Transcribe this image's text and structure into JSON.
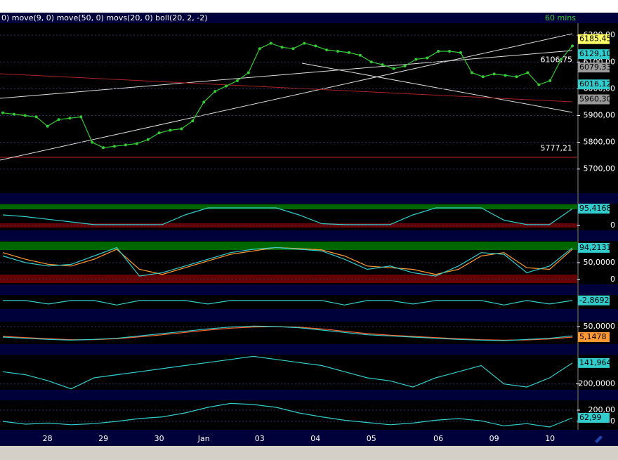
{
  "header": {
    "indicators": "0) move(9, 0) move(50, 0) movs(20, 0) boll(20, 2, -2)",
    "timeframe": "60 mins"
  },
  "chart_data": [
    {
      "type": "line",
      "color": "#33cc33",
      "categories": [
        null,
        null,
        null,
        null,
        "28",
        null,
        null,
        null,
        null,
        "29",
        null,
        null,
        null,
        null,
        "30",
        null,
        null,
        null,
        "Jan",
        null,
        null,
        null,
        null,
        "03",
        null,
        null,
        null,
        null,
        "04",
        null,
        null,
        null,
        null,
        "05",
        null,
        null,
        null,
        null,
        null,
        "06",
        null,
        null,
        null,
        null,
        "09",
        null,
        null,
        null,
        null,
        "10",
        null,
        null
      ],
      "values": [
        5910,
        5905,
        5900,
        5895,
        5860,
        5885,
        5890,
        5895,
        5800,
        5780,
        5785,
        5790,
        5795,
        5810,
        5835,
        5845,
        5850,
        5880,
        5950,
        5990,
        6010,
        6030,
        6060,
        6150,
        6170,
        6155,
        6150,
        6170,
        6160,
        6145,
        6140,
        6135,
        6125,
        6100,
        6090,
        6075,
        6085,
        6110,
        6115,
        6140,
        6140,
        6135,
        6060,
        6045,
        6055,
        6050,
        6045,
        6060,
        6015,
        6030,
        6110,
        6160
      ],
      "ylim": [
        5610,
        6245
      ],
      "yticks": [
        {
          "value": 6200,
          "label": "6200,00"
        },
        {
          "value": 6100,
          "label": "6100,00"
        },
        {
          "value": 6000,
          "label": "6000,00"
        },
        {
          "value": 5900,
          "label": "5900,00"
        },
        {
          "value": 5800,
          "label": "5800,00"
        },
        {
          "value": 5700,
          "label": "5700,00"
        }
      ],
      "markers": [
        {
          "value": 6185.45,
          "label": "6185,45",
          "color": "#ffff66"
        },
        {
          "value": 6129.1,
          "label": "6129,10",
          "color": "#33cccc"
        },
        {
          "value": 6079.33,
          "label": "6079,33",
          "color": "#999999"
        },
        {
          "value": 6016.12,
          "label": "6016,12",
          "color": "#33cccc"
        },
        {
          "value": 5960.3,
          "label": "5960,30",
          "color": "#999999"
        }
      ],
      "annotations": [
        {
          "value": 6106.75,
          "label": "6106,75"
        },
        {
          "value": 5777.21,
          "label": "5777,21"
        }
      ]
    },
    {
      "type": "line",
      "ylim": [
        -28,
        124
      ],
      "yticks": [
        0
      ],
      "series": [
        {
          "color": "#33cccc",
          "values": [
            60,
            50,
            35,
            20,
            5,
            5,
            5,
            5,
            60,
            100,
            100,
            100,
            100,
            60,
            10,
            5,
            5,
            5,
            60,
            100,
            100,
            100,
            30,
            5,
            5,
            95
          ]
        }
      ],
      "markers": [
        {
          "value": 95.4168,
          "label": "95,4168",
          "color": "#33cccc"
        }
      ]
    },
    {
      "type": "line",
      "ylim": [
        -15,
        115
      ],
      "yticks": [
        {
          "value": 50,
          "label": "50,0000"
        },
        0
      ],
      "series": [
        {
          "color": "#ff9933",
          "values": [
            80,
            60,
            45,
            40,
            60,
            90,
            30,
            15,
            35,
            55,
            75,
            85,
            95,
            92,
            88,
            70,
            40,
            35,
            30,
            15,
            30,
            70,
            80,
            35,
            30,
            90
          ]
        },
        {
          "color": "#33cccc",
          "values": [
            70,
            50,
            40,
            45,
            70,
            95,
            10,
            20,
            40,
            60,
            80,
            90,
            95,
            90,
            85,
            60,
            30,
            40,
            20,
            10,
            40,
            80,
            75,
            20,
            40,
            94
          ]
        }
      ],
      "markers": [
        {
          "value": 94.2131,
          "label": "94,2131",
          "color": "#33cccc"
        }
      ]
    },
    {
      "type": "line",
      "ylim": [
        -20,
        8
      ],
      "yticks": [],
      "series": [
        {
          "color": "#33cccc",
          "values": [
            -3,
            -3,
            -10,
            -3,
            -3,
            -12,
            -3,
            -3,
            -3,
            -10,
            -3,
            -3,
            -3,
            -3,
            -3,
            -12,
            -3,
            -3,
            -10,
            -3,
            -3,
            -3,
            -12,
            -3,
            -10,
            -3
          ]
        }
      ],
      "markers": [
        {
          "value": -2.8692,
          "label": "-2,8692",
          "color": "#33cccc"
        }
      ]
    },
    {
      "type": "line",
      "ylim": [
        -25,
        71
      ],
      "yticks": [
        {
          "value": 50,
          "label": "50,0000"
        }
      ],
      "series": [
        {
          "color": "#ff6633",
          "values": [
            8,
            3,
            -2,
            -6,
            -6,
            -2,
            6,
            15,
            25,
            35,
            43,
            48,
            50,
            47,
            40,
            30,
            20,
            13,
            8,
            3,
            -2,
            -6,
            -8,
            -7,
            -3,
            5
          ]
        },
        {
          "color": "#33cccc",
          "values": [
            5,
            0,
            -5,
            -8,
            -5,
            0,
            10,
            20,
            30,
            40,
            48,
            52,
            50,
            45,
            35,
            25,
            15,
            10,
            5,
            0,
            -5,
            -8,
            -10,
            -5,
            0,
            10
          ]
        }
      ],
      "markers": [
        {
          "value": 5.1478,
          "label": "5,1478",
          "color": "#ff9933"
        }
      ]
    },
    {
      "type": "line",
      "ylim": [
        -295,
        278
      ],
      "yticks": [
        {
          "value": -200,
          "label": "-200,0000"
        }
      ],
      "series": [
        {
          "color": "#33cccc",
          "values": [
            0,
            -50,
            -150,
            -280,
            -100,
            -50,
            0,
            50,
            100,
            150,
            200,
            250,
            200,
            150,
            100,
            0,
            -100,
            -150,
            -250,
            -100,
            0,
            100,
            -200,
            -250,
            -100,
            142
          ]
        }
      ],
      "markers": [
        {
          "value": 141.9644,
          "label": "141,9644",
          "color": "#33cccc"
        }
      ]
    },
    {
      "type": "line",
      "ylim": [
        -150,
        375
      ],
      "yticks": [
        {
          "value": 200,
          "label": "200,00"
        },
        0
      ],
      "series": [
        {
          "color": "#33cccc",
          "values": [
            0,
            -50,
            -30,
            -60,
            -40,
            0,
            50,
            80,
            150,
            250,
            320,
            300,
            250,
            150,
            80,
            20,
            -20,
            -60,
            -30,
            20,
            50,
            10,
            -80,
            -40,
            -100,
            63
          ]
        }
      ],
      "markers": [
        {
          "value": 62.99,
          "label": "62,99",
          "color": "#33cccc"
        }
      ]
    }
  ]
}
